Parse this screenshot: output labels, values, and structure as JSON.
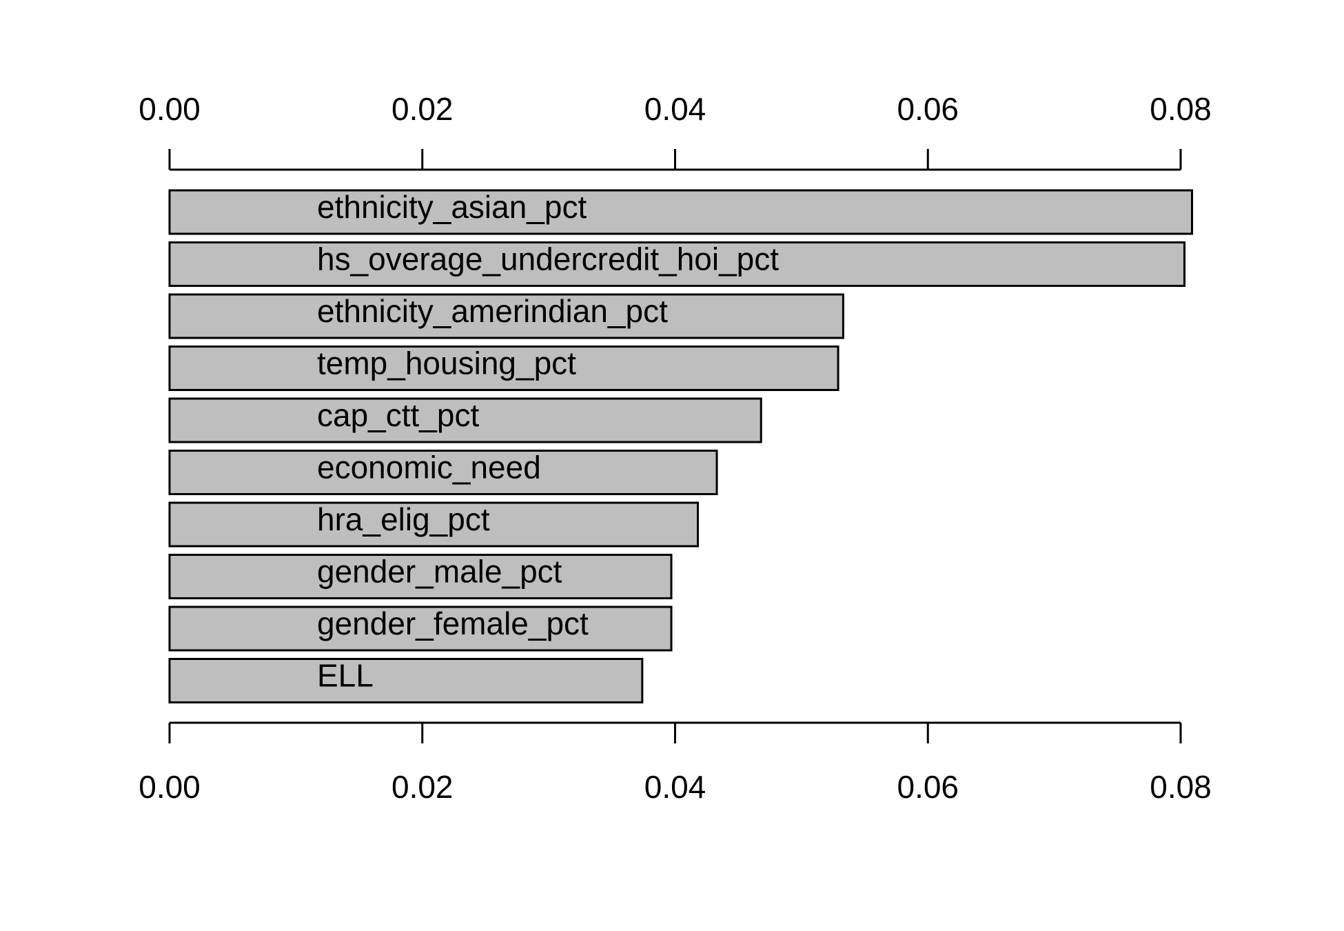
{
  "chart_data": {
    "type": "bar",
    "orientation": "horizontal",
    "categories": [
      "ethnicity_asian_pct",
      "hs_overage_undercredit_hoi_pct",
      "ethnicity_amerindian_pct",
      "temp_housing_pct",
      "cap_ctt_pct",
      "economic_need",
      "hra_elig_pct",
      "gender_male_pct",
      "gender_female_pct",
      "ELL"
    ],
    "values": [
      0.0809,
      0.0803,
      0.0533,
      0.0529,
      0.0468,
      0.0433,
      0.0418,
      0.0397,
      0.0397,
      0.0374
    ],
    "xlim": [
      0,
      0.08
    ],
    "ticks": [
      0,
      0.02,
      0.04,
      0.06,
      0.08
    ],
    "tick_labels": [
      "0.00",
      "0.02",
      "0.04",
      "0.06",
      "0.08"
    ],
    "axes": [
      "top",
      "bottom"
    ],
    "bar_color": "#bebebe",
    "edge_color": "#000000",
    "grid": false,
    "title": "",
    "xlabel": "",
    "ylabel": ""
  }
}
